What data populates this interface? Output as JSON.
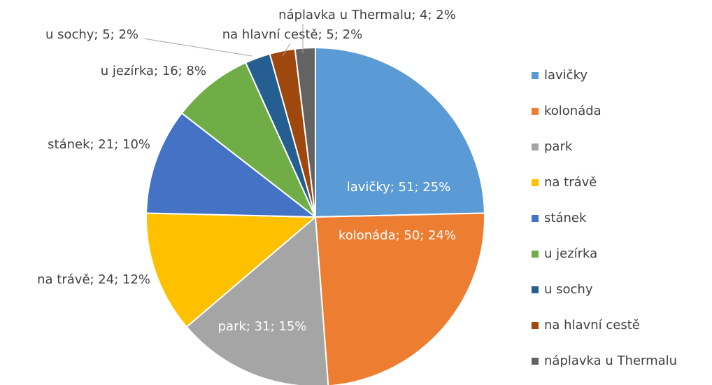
{
  "chart_data": {
    "type": "pie",
    "categories": [
      "lavičky",
      "kolonáda",
      "park",
      "na trávě",
      "stánek",
      "u jezírka",
      "u sochy",
      "na hlavní cestě",
      "náplavka u Thermalu"
    ],
    "values": [
      51,
      50,
      31,
      24,
      21,
      16,
      5,
      5,
      4
    ],
    "value_labels": [
      "lavičky; 51; 25%",
      "kolonáda; 50; 24%",
      "park; 31; 15%",
      "na trávě; 24; 12%",
      "stánek; 21; 10%",
      "u jezírka; 16; 8%",
      "u sochy; 5; 2%",
      "na hlavní cestě; 5; 2%",
      "náplavka u Thermalu; 4; 2%"
    ],
    "colors": [
      "#5b9bd5",
      "#ed7d31",
      "#a5a5a5",
      "#ffc000",
      "#4472c4",
      "#70ad47",
      "#255e91",
      "#9e480e",
      "#636363"
    ],
    "legend": "right"
  }
}
